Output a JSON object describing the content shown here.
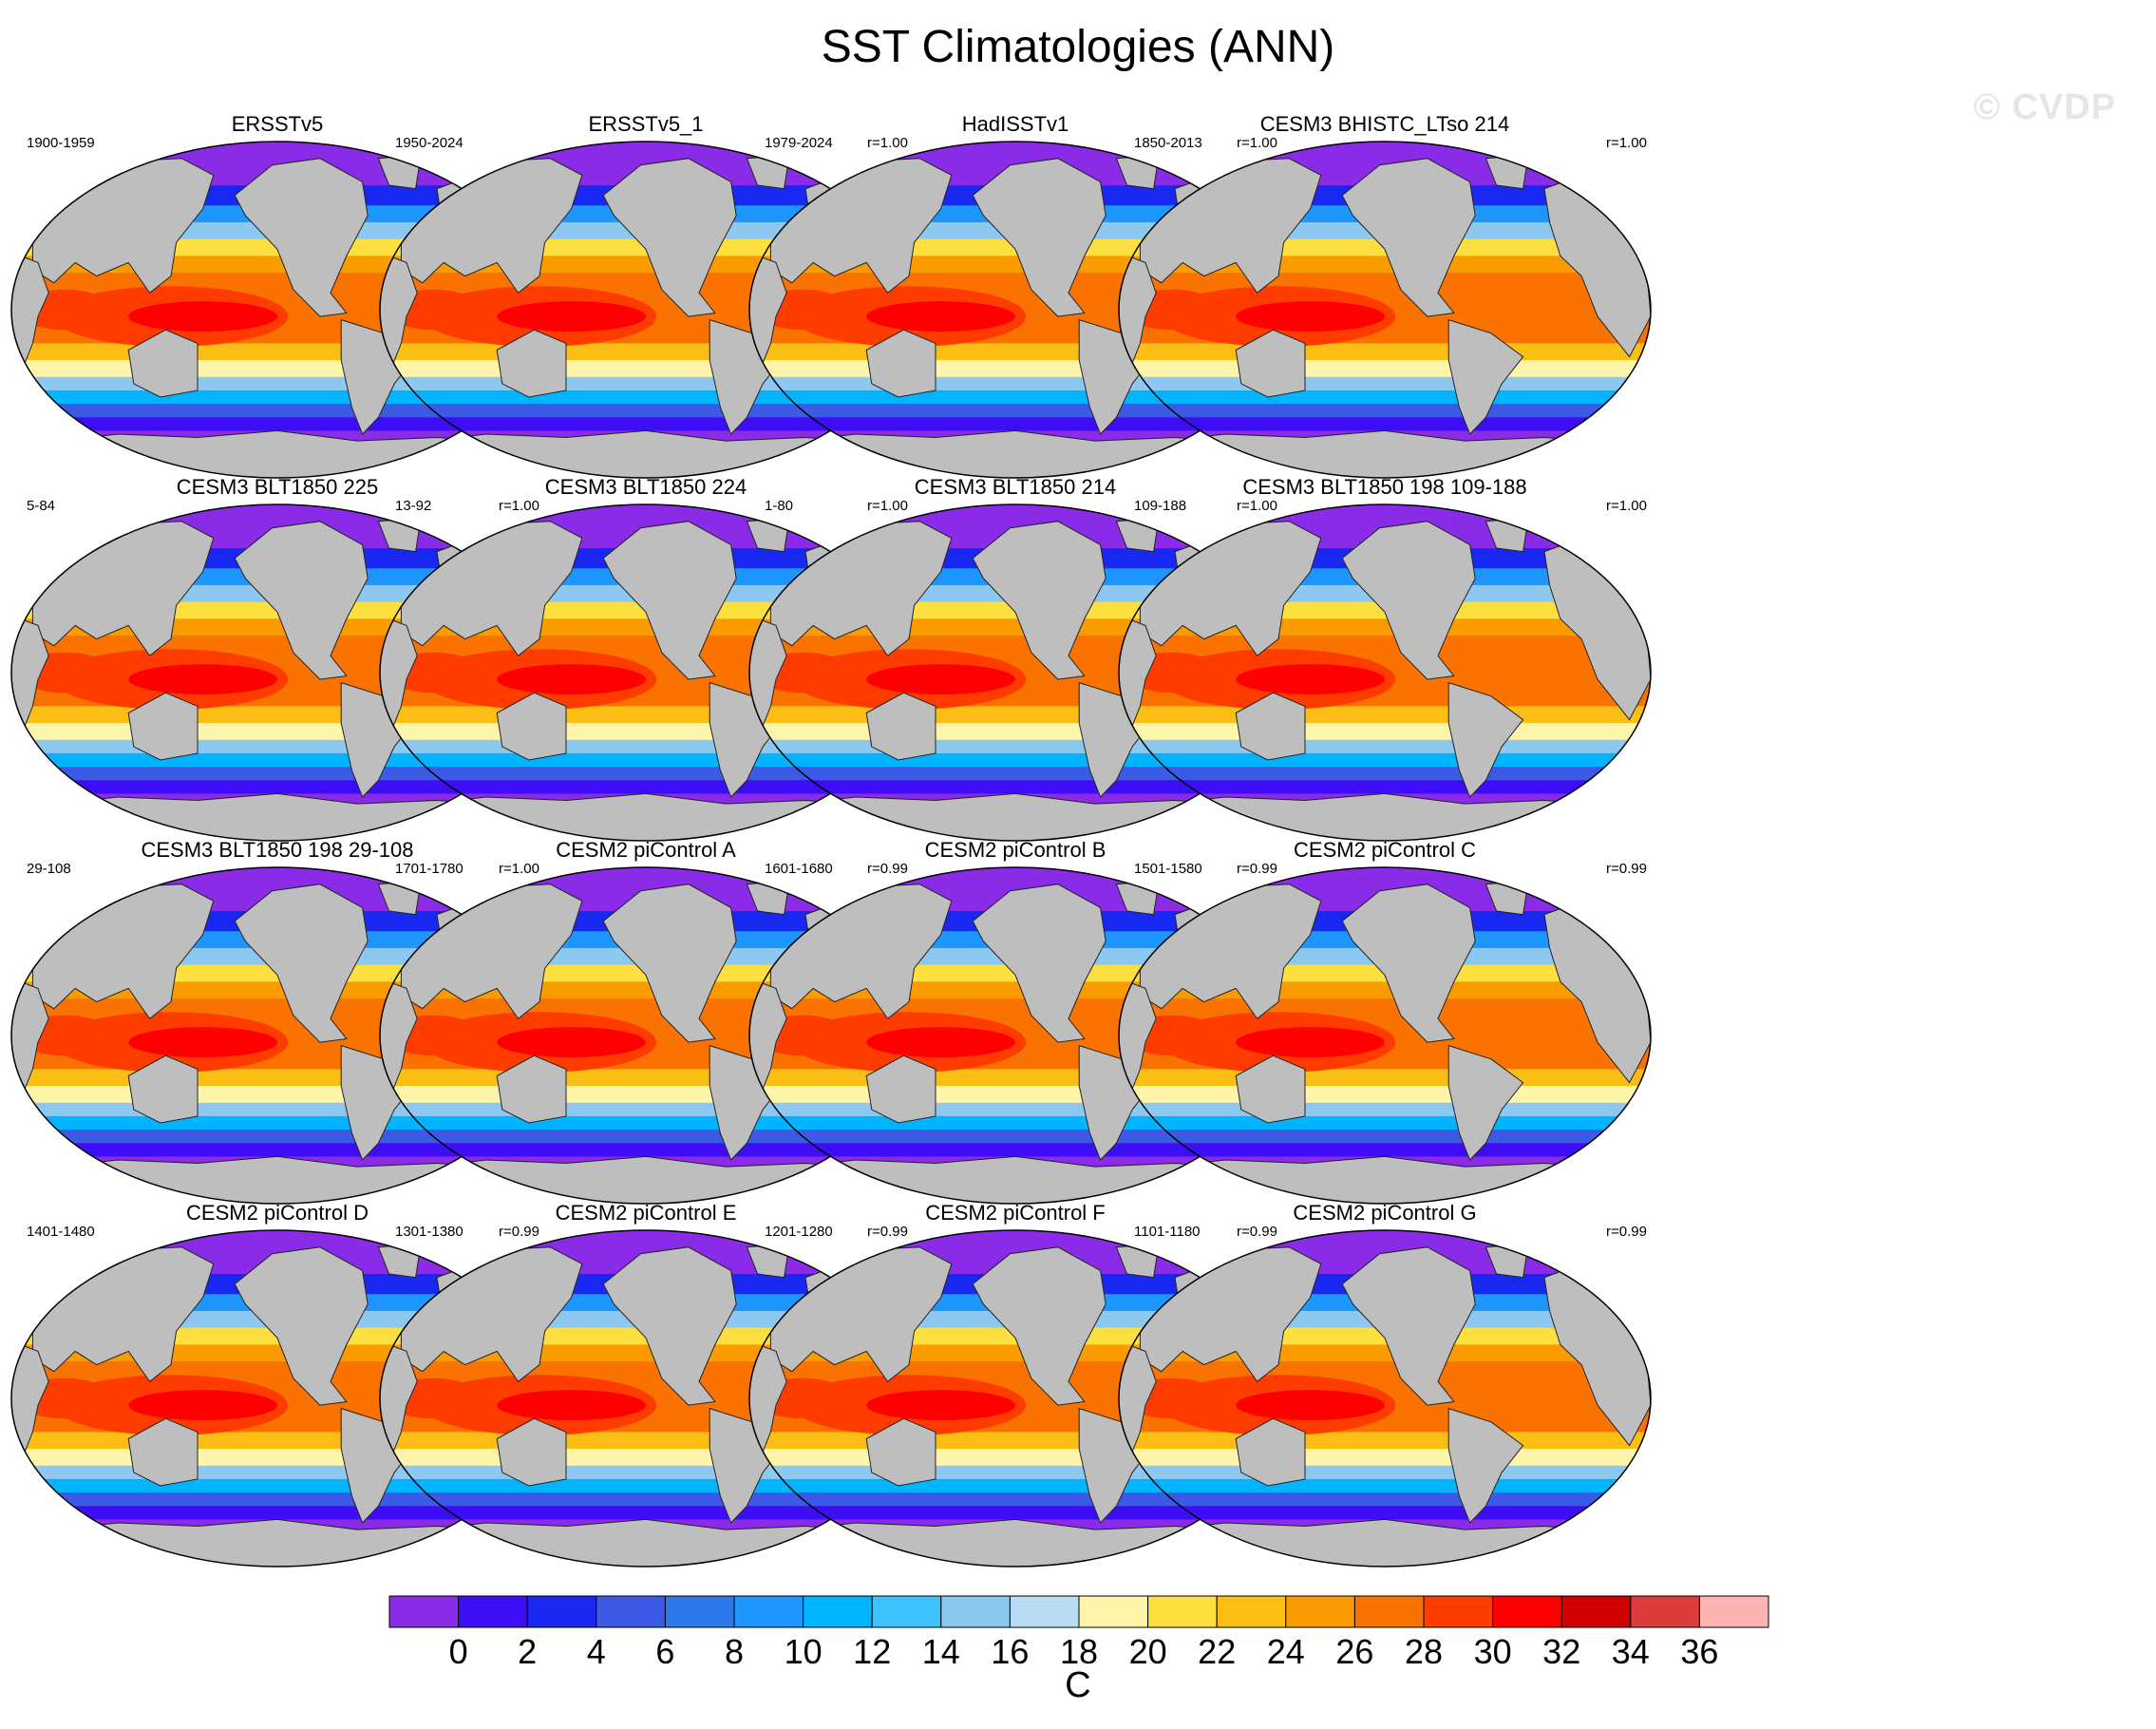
{
  "figure": {
    "title": "SST Climatologies (ANN)",
    "watermark": "© CVDP"
  },
  "chart_data": {
    "type": "heatmap",
    "projection": "global map (Robinson-like), Pacific-centered",
    "variable": "Sea Surface Temperature, annual mean",
    "panels": [
      {
        "title": "ERSSTv5",
        "period": "1900-1959",
        "corr": ""
      },
      {
        "title": "ERSSTv5_1",
        "period": "1950-2024",
        "corr": "r=1.00"
      },
      {
        "title": "HadISSTv1",
        "period": "1979-2024",
        "corr": "r=1.00"
      },
      {
        "title": "CESM3 BHISTC_LTso 214",
        "period": "1850-2013",
        "corr": "r=1.00"
      },
      {
        "title": "CESM3 BLT1850 225",
        "period": "5-84",
        "corr": "r=1.00"
      },
      {
        "title": "CESM3 BLT1850 224",
        "period": "13-92",
        "corr": "r=1.00"
      },
      {
        "title": "CESM3 BLT1850 214",
        "period": "1-80",
        "corr": "r=1.00"
      },
      {
        "title": "CESM3 BLT1850 198 109-188",
        "period": "109-188",
        "corr": "r=1.00"
      },
      {
        "title": "CESM3 BLT1850 198 29-108",
        "period": "29-108",
        "corr": "r=1.00"
      },
      {
        "title": "CESM2 piControl A",
        "period": "1701-1780",
        "corr": "r=0.99"
      },
      {
        "title": "CESM2 piControl B",
        "period": "1601-1680",
        "corr": "r=0.99"
      },
      {
        "title": "CESM2 piControl C",
        "period": "1501-1580",
        "corr": "r=0.99"
      },
      {
        "title": "CESM2 piControl D",
        "period": "1401-1480",
        "corr": "r=0.99"
      },
      {
        "title": "CESM2 piControl E",
        "period": "1301-1380",
        "corr": "r=0.99"
      },
      {
        "title": "CESM2 piControl F",
        "period": "1201-1280",
        "corr": "r=0.99"
      },
      {
        "title": "CESM2 piControl G",
        "period": "1101-1180",
        "corr": "r=0.99"
      }
    ],
    "colorbar": {
      "unit": "C",
      "tick_labels": [
        "0",
        "2",
        "4",
        "6",
        "8",
        "10",
        "12",
        "14",
        "16",
        "18",
        "20",
        "22",
        "24",
        "26",
        "28",
        "30",
        "32",
        "34",
        "36"
      ],
      "colors": [
        "#8a2be8",
        "#3d0ef5",
        "#1928f0",
        "#3c5ae6",
        "#2d78eb",
        "#1e96ff",
        "#00b4ff",
        "#3cc3ff",
        "#8cc8f0",
        "#b9dcf5",
        "#fff5aa",
        "#fde040",
        "#fbbe14",
        "#fa9b00",
        "#fa7300",
        "#ff3c00",
        "#ff0000",
        "#d20000",
        "#dc3c3c",
        "#ffb4b4"
      ]
    },
    "land_color": "#bebebe"
  }
}
